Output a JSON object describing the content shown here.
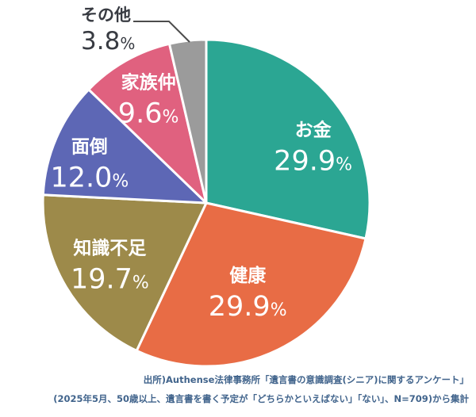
{
  "chart_data": {
    "type": "pie",
    "title": "",
    "legend_position": "none",
    "labels_inside_slices": true,
    "start_angle_deg": 0,
    "direction": "clockwise",
    "slices": [
      {
        "label": "お金",
        "value": 29.9,
        "value_display": "29.9",
        "unit": "%",
        "color": "#2ba693"
      },
      {
        "label": "健康",
        "value": 29.9,
        "value_display": "29.9",
        "unit": "%",
        "color": "#e86c45"
      },
      {
        "label": "知識不足",
        "value": 19.7,
        "value_display": "19.7",
        "unit": "%",
        "color": "#9d8a4a"
      },
      {
        "label": "面倒",
        "value": 12.0,
        "value_display": "12.0",
        "unit": "%",
        "color": "#5d67b5"
      },
      {
        "label": "家族仲",
        "value": 9.6,
        "value_display": "9.6",
        "unit": "%",
        "color": "#e0617f"
      },
      {
        "label": "その他",
        "value": 3.8,
        "value_display": "3.8",
        "unit": "%",
        "color": "#9b9b9b"
      }
    ]
  },
  "source": {
    "line1": "出所)Authense法律事務所「遺言書の意識調査(シニア)に関するアンケート」",
    "line2": "(2025年5月、50歳以上、遺言書を書く予定が「どちらかといえばない」「ない」、N=709)から集計"
  },
  "colors": {
    "callout_text": "#383b42",
    "leader_line": "#4c4c4c",
    "source_text": "#41648c",
    "slice_label_text": "#ffffff",
    "background": "#ffffff"
  }
}
